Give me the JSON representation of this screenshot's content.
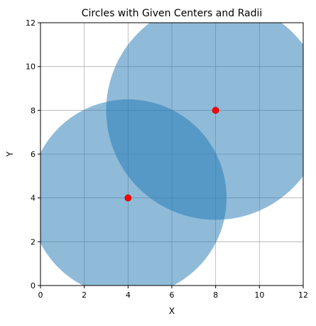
{
  "chart_data": {
    "type": "scatter",
    "title": "Circles with Given Centers and Radii",
    "xlabel": "X",
    "ylabel": "Y",
    "xlim": [
      0,
      12
    ],
    "ylim": [
      0,
      12
    ],
    "xticks": [
      0,
      2,
      4,
      6,
      8,
      10,
      12
    ],
    "yticks": [
      0,
      2,
      4,
      6,
      8,
      10,
      12
    ],
    "grid": true,
    "legend": "none",
    "circles": [
      {
        "center": [
          4,
          4
        ],
        "radius": 4.5
      },
      {
        "center": [
          8,
          8
        ],
        "radius": 5
      }
    ],
    "centers": {
      "x": [
        4,
        8
      ],
      "y": [
        4,
        8
      ]
    },
    "colors": {
      "circle_fill": "#1f77b4",
      "center_marker": "#ff0000",
      "grid": "#b0b0b0"
    }
  }
}
